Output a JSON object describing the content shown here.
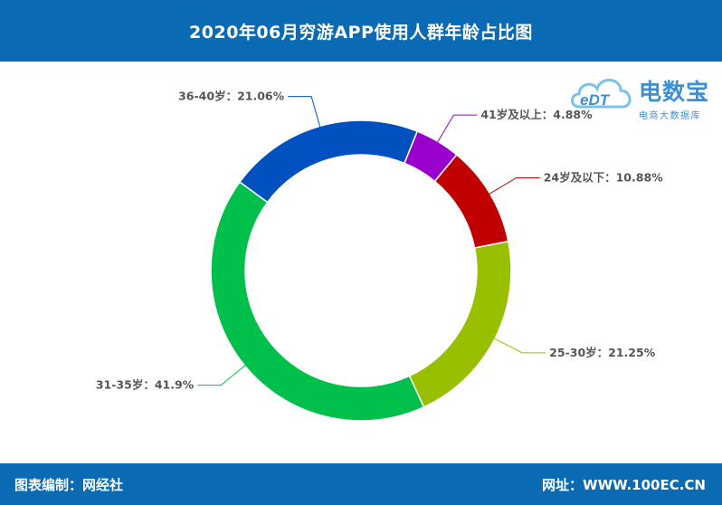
{
  "title": "2020年06月穷游APP使用人群年龄占比图",
  "footer": {
    "left": "图表编制：网经社",
    "right": "网址：WWW.100EC.CN"
  },
  "logo": {
    "mark": "eDT",
    "title": "电数宝",
    "subtitle": "电商大数据库",
    "icon": "cloud-logo-icon"
  },
  "colors": {
    "header_bg": "#0a6ab4",
    "text": "#555555"
  },
  "chart_data": {
    "type": "pie",
    "variant": "donut",
    "legend": "none",
    "slices": [
      {
        "name": "41岁及以上",
        "value": 4.88,
        "label": "41岁及以上：4.88%",
        "color": "#9900cc"
      },
      {
        "name": "24岁及以下",
        "value": 10.88,
        "label": "24岁及以下：10.88%",
        "color": "#c00000"
      },
      {
        "name": "25-30岁",
        "value": 21.25,
        "label": "25-30岁：21.25%",
        "color": "#99c000"
      },
      {
        "name": "31-35岁",
        "value": 41.9,
        "label": "31-35岁：41.9%",
        "color": "#00c04b"
      },
      {
        "name": "36-40岁",
        "value": 21.06,
        "label": "36-40岁：21.06%",
        "color": "#0050c0"
      }
    ]
  }
}
